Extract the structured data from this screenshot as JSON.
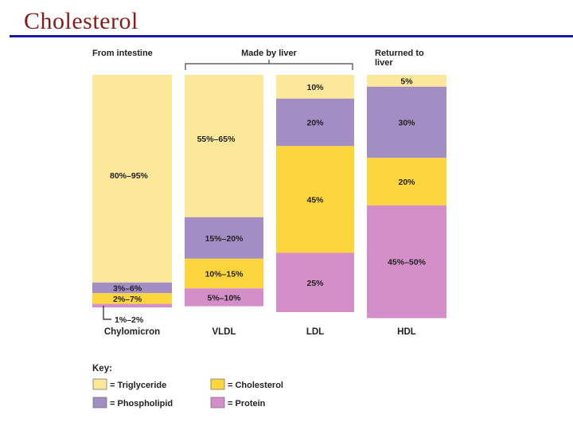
{
  "slide": {
    "title": "Cholesterol"
  },
  "header_labels": {
    "from_intestine": "From intestine",
    "made_by_liver": "Made by liver",
    "returned_to_liver": [
      "Returned to",
      "liver"
    ]
  },
  "colors": {
    "triglyceride": "#fbe89a",
    "cholesterol": "#fcd63c",
    "phospholipid": "#a28dc5",
    "protein": "#d48ec8"
  },
  "chart_data": {
    "type": "bar",
    "stacked": true,
    "categories": [
      "Chylomicron",
      "VLDL",
      "LDL",
      "HDL"
    ],
    "series": [
      {
        "name": "Triglyceride",
        "key": "triglyceride",
        "values": [
          87.5,
          60,
          10,
          5
        ],
        "labels": [
          "80%–95%",
          "55%–65%",
          "10%",
          "5%"
        ]
      },
      {
        "name": "Phospholipid",
        "key": "phospholipid",
        "values": [
          4.5,
          17.5,
          20,
          30
        ],
        "labels": [
          "3%–6%",
          "15%–20%",
          "20%",
          "30%"
        ]
      },
      {
        "name": "Cholesterol",
        "key": "cholesterol",
        "values": [
          4.5,
          12.5,
          45,
          20
        ],
        "labels": [
          "2%–7%",
          "10%–15%",
          "45%",
          "20%"
        ]
      },
      {
        "name": "Protein",
        "key": "protein",
        "values": [
          1.5,
          7.5,
          25,
          47.5
        ],
        "labels": [
          "1%–2%",
          "5%–10%",
          "25%",
          "45%–50%"
        ]
      }
    ],
    "ylim": [
      0,
      100
    ],
    "legend": {
      "title": "Key:",
      "position": "bottom-left",
      "entries": [
        {
          "label": "= Triglyceride",
          "key": "triglyceride"
        },
        {
          "label": "= Cholesterol",
          "key": "cholesterol"
        },
        {
          "label": "= Phospholipid",
          "key": "phospholipid"
        },
        {
          "label": "= Protein",
          "key": "protein"
        }
      ]
    }
  }
}
